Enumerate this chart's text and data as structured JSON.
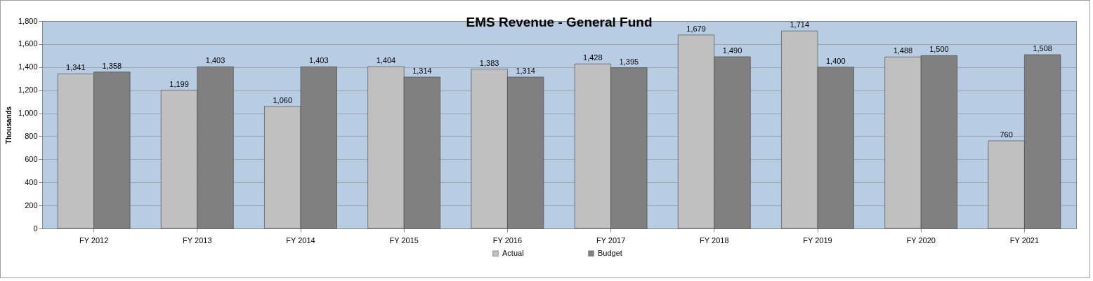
{
  "chart_data": {
    "type": "bar",
    "title": "EMS Revenue - General Fund",
    "ylabel": "Thousands",
    "categories": [
      "FY 2012",
      "FY 2013",
      "FY 2014",
      "FY 2015",
      "FY 2016",
      "FY 2017",
      "FY 2018",
      "FY 2019",
      "FY 2020",
      "FY 2021"
    ],
    "series": [
      {
        "name": "Actual",
        "color": "#c0c0c0",
        "values": [
          1341,
          1199,
          1060,
          1404,
          1383,
          1428,
          1679,
          1714,
          1488,
          760
        ],
        "value_labels": [
          "1,341",
          "1,199",
          "1,060",
          "1,404",
          "1,383",
          "1,428",
          "1,679",
          "1,714",
          "1,488",
          "760"
        ]
      },
      {
        "name": "Budget",
        "color": "#808080",
        "values": [
          1358,
          1403,
          1403,
          1314,
          1314,
          1395,
          1490,
          1400,
          1500,
          1508
        ],
        "value_labels": [
          "1,358",
          "1,403",
          "1,403",
          "1,314",
          "1,314",
          "1,395",
          "1,490",
          "1,400",
          "1,500",
          "1,508"
        ]
      }
    ],
    "ylim": [
      0,
      1800
    ],
    "yticks": [
      0,
      200,
      400,
      600,
      800,
      {
        "value": 1000,
        "label": "1,000"
      },
      {
        "value": 1200,
        "label": "1,200"
      },
      {
        "value": 1400,
        "label": "1,400"
      },
      {
        "value": 1600,
        "label": "1,600"
      },
      {
        "value": 1800,
        "label": "1,800"
      }
    ],
    "grid": "y",
    "legend": "bottom"
  }
}
